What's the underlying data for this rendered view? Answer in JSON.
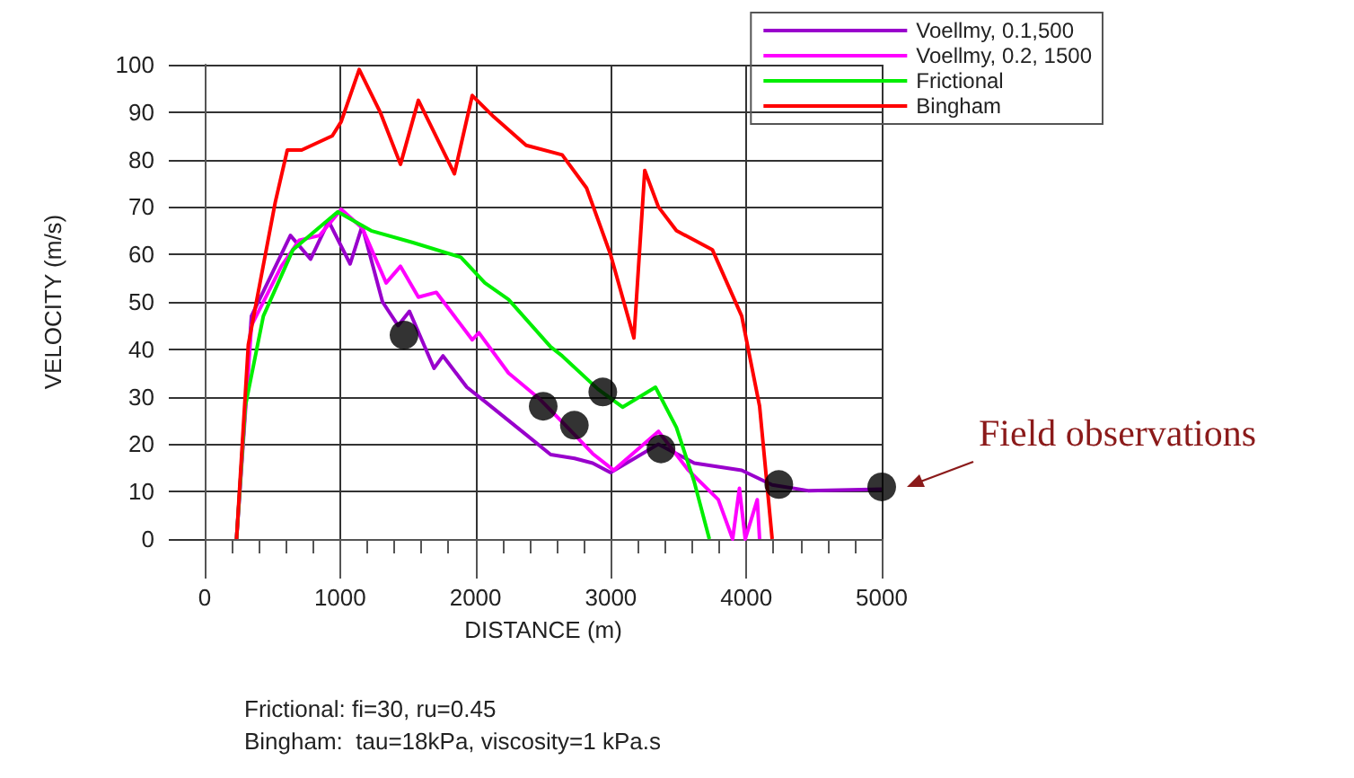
{
  "chart_data": {
    "type": "line",
    "xlabel": "DISTANCE (m)",
    "ylabel": "VELOCITY (m/s)",
    "xlim": [
      0,
      5000
    ],
    "xticks": [
      0,
      1000,
      2000,
      3000,
      4000,
      5000
    ],
    "ylim": [
      0,
      100
    ],
    "yticks": [
      0,
      10,
      20,
      30,
      40,
      50,
      60,
      70,
      80,
      90,
      100
    ],
    "grid": true,
    "legend": "top right",
    "marker": "none",
    "line_style": "solid",
    "series": [
      {
        "name": "Voellmy, 0.1,500",
        "color": "#9900cc",
        "x": [
          235,
          345,
          633,
          782,
          915,
          1074,
          1163,
          1313,
          1428,
          1512,
          1694,
          1760,
          1936,
          2069,
          2374,
          2555,
          2732,
          2865,
          2997,
          3351,
          3616,
          3966,
          4191,
          4456,
          5000
        ],
        "values": [
          0,
          47,
          64,
          59,
          67,
          58,
          66,
          50,
          45,
          48,
          36,
          38.6,
          32,
          29,
          22,
          17.8,
          17,
          16,
          14,
          20,
          16,
          14.5,
          11.4,
          10.2,
          10.5
        ]
      },
      {
        "name": "Voellmy, 0.2, 1500",
        "color": "#ff00ff",
        "x": [
          235,
          345,
          566,
          698,
          849,
          1008,
          1163,
          1340,
          1446,
          1578,
          1711,
          1976,
          2025,
          2244,
          2467,
          2732,
          2865,
          3020,
          3351,
          3572,
          3793,
          3899,
          3949,
          3992,
          4081,
          4098
        ],
        "values": [
          0,
          45,
          57.5,
          63,
          64,
          69.5,
          65.6,
          54,
          57.5,
          51,
          52,
          42,
          43.5,
          35,
          29.7,
          22,
          18,
          14.5,
          22.7,
          14.5,
          8.3,
          0,
          10.7,
          0,
          8.3,
          0
        ]
      },
      {
        "name": "Frictional",
        "color": "#00ee00",
        "x": [
          235,
          300,
          433,
          652,
          983,
          1229,
          1538,
          1892,
          2069,
          2244,
          2555,
          2640,
          2904,
          3086,
          3329,
          3484,
          3616,
          3727
        ],
        "values": [
          0,
          28,
          47,
          61,
          69,
          65,
          62.5,
          59.4,
          54,
          50.5,
          40.5,
          38.6,
          31.6,
          27.8,
          32,
          23.5,
          12,
          0
        ]
      },
      {
        "name": "Bingham",
        "color": "#ff0000",
        "x": [
          235,
          322,
          521,
          610,
          716,
          942,
          1008,
          1141,
          1296,
          1446,
          1578,
          1844,
          1976,
          2135,
          2374,
          2640,
          2820,
          2997,
          3170,
          3250,
          3351,
          3484,
          3749,
          3966,
          4098,
          4191
        ],
        "values": [
          0,
          41,
          71,
          82,
          82,
          85,
          88,
          99,
          90,
          79,
          92.5,
          77,
          93.5,
          89,
          83,
          81,
          74,
          60,
          42.4,
          77.7,
          70,
          65,
          61,
          47,
          28,
          0
        ]
      },
      {
        "type": "scatter",
        "marker": "circle",
        "color": "#000000",
        "x": [
          1472,
          2500,
          2730,
          2940,
          3370,
          4240,
          5000
        ],
        "values": [
          43,
          28,
          24,
          31,
          19,
          11.5,
          11
        ]
      }
    ],
    "annotations": [
      {
        "text": "Field observations",
        "x": 5000,
        "y": 11
      },
      "Frictional: fi=30, ru=0.45",
      "Bingham:  tau=18kPa, viscosity=1 kPa.s"
    ]
  }
}
